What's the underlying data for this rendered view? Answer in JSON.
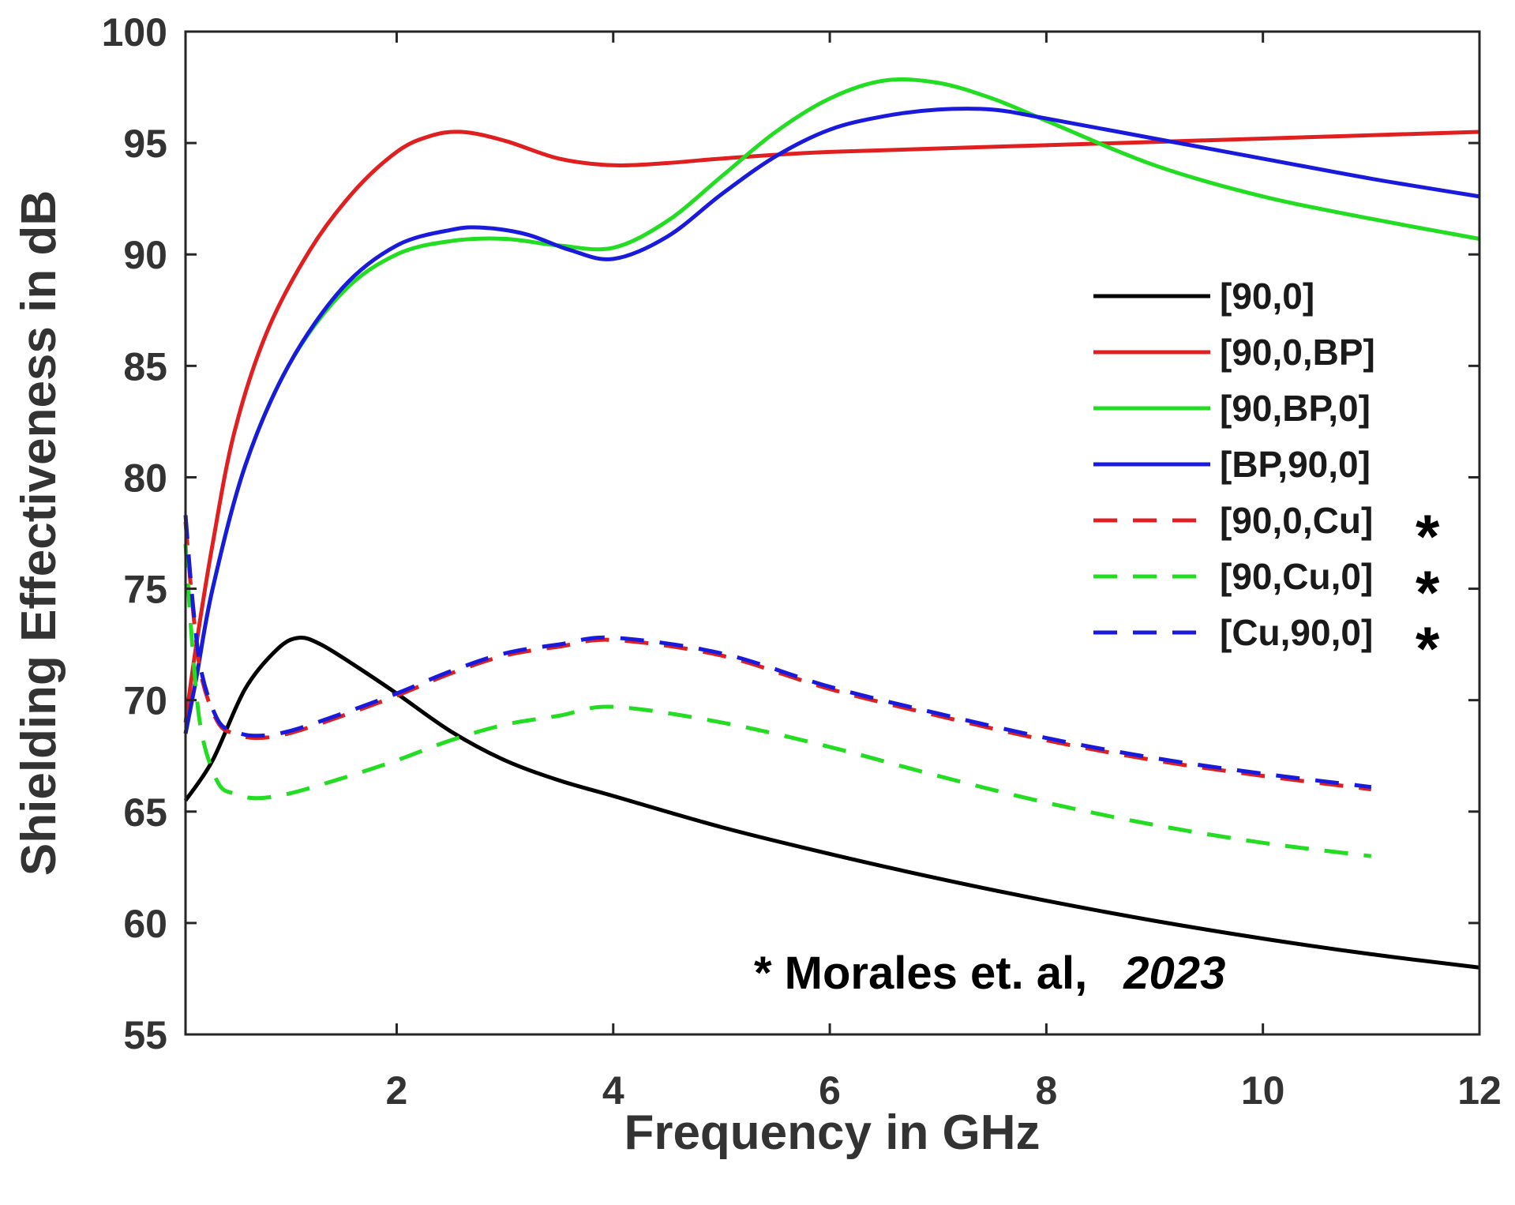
{
  "chart_data": {
    "type": "line",
    "title": "",
    "xlabel": "Frequency in GHz",
    "ylabel": "Shielding Effectiveness in dB",
    "xlim": [
      0.05,
      12
    ],
    "ylim": [
      55,
      100
    ],
    "xticks": [
      2,
      4,
      6,
      8,
      10,
      12
    ],
    "yticks": [
      55,
      60,
      65,
      70,
      75,
      80,
      85,
      90,
      95,
      100
    ],
    "grid": false,
    "legend_position": "right",
    "annotation": {
      "prefix": "* Morales et. al,",
      "year": "2023"
    },
    "series": [
      {
        "name": "[90,0]",
        "color": "#000000",
        "style": "solid",
        "star": "",
        "x": [
          0.05,
          0.3,
          0.6,
          0.9,
          1.1,
          1.3,
          1.6,
          2.0,
          2.5,
          3.0,
          3.5,
          4.0,
          5.0,
          6.0,
          7.0,
          8.0,
          9.0,
          10.0,
          11.0,
          12.0
        ],
        "y": [
          65.5,
          67.3,
          70.5,
          72.3,
          72.8,
          72.5,
          71.6,
          70.3,
          68.6,
          67.3,
          66.4,
          65.7,
          64.3,
          63.1,
          62.0,
          61.0,
          60.1,
          59.3,
          58.6,
          58.0
        ]
      },
      {
        "name": "[90,0,BP]",
        "color": "#e02020",
        "style": "solid",
        "star": "",
        "x": [
          0.05,
          0.15,
          0.3,
          0.5,
          0.8,
          1.2,
          1.6,
          2.0,
          2.3,
          2.6,
          3.0,
          3.5,
          4.0,
          4.5,
          5.0,
          6.0,
          8.0,
          10.0,
          12.0
        ],
        "y": [
          69.0,
          72.5,
          77.0,
          82.0,
          86.5,
          90.2,
          92.8,
          94.6,
          95.3,
          95.5,
          95.1,
          94.3,
          94.0,
          94.1,
          94.3,
          94.6,
          94.9,
          95.2,
          95.5
        ]
      },
      {
        "name": "[90,BP,0]",
        "color": "#22dd22",
        "style": "solid",
        "star": "",
        "x": [
          0.05,
          0.15,
          0.3,
          0.6,
          1.0,
          1.5,
          2.0,
          2.5,
          3.0,
          3.5,
          4.0,
          4.5,
          5.0,
          5.5,
          6.0,
          6.5,
          7.0,
          7.5,
          8.0,
          9.0,
          10.0,
          11.0,
          12.0
        ],
        "y": [
          68.5,
          71.0,
          75.0,
          80.5,
          85.0,
          88.3,
          90.0,
          90.6,
          90.7,
          90.4,
          90.3,
          91.5,
          93.5,
          95.5,
          97.0,
          97.8,
          97.7,
          97.0,
          96.0,
          94.0,
          92.6,
          91.6,
          90.7
        ]
      },
      {
        "name": "[BP,90,0]",
        "color": "#1a1adc",
        "style": "solid",
        "star": "",
        "x": [
          0.05,
          0.15,
          0.3,
          0.6,
          1.0,
          1.5,
          2.0,
          2.5,
          2.8,
          3.2,
          3.6,
          4.0,
          4.5,
          5.0,
          5.5,
          6.0,
          6.5,
          7.0,
          7.5,
          8.0,
          9.0,
          10.0,
          11.0,
          12.0
        ],
        "y": [
          68.5,
          71.0,
          75.0,
          80.5,
          85.0,
          88.5,
          90.4,
          91.1,
          91.2,
          90.9,
          90.2,
          89.8,
          90.8,
          92.7,
          94.4,
          95.6,
          96.2,
          96.5,
          96.5,
          96.1,
          95.2,
          94.3,
          93.4,
          92.6
        ]
      },
      {
        "name": "[90,0,Cu]",
        "color": "#e02020",
        "style": "dashed",
        "star": "*",
        "x": [
          0.05,
          0.12,
          0.2,
          0.35,
          0.5,
          0.7,
          1.0,
          1.5,
          2.0,
          2.5,
          3.0,
          3.5,
          4.0,
          5.0,
          6.0,
          7.0,
          8.0,
          9.0,
          10.0,
          11.0
        ],
        "y": [
          78.0,
          74.0,
          71.0,
          69.0,
          68.5,
          68.3,
          68.5,
          69.3,
          70.2,
          71.2,
          72.0,
          72.4,
          72.7,
          72.0,
          70.5,
          69.3,
          68.2,
          67.3,
          66.6,
          66.0
        ]
      },
      {
        "name": "[90,Cu,0]",
        "color": "#22dd22",
        "style": "dashed",
        "star": "*",
        "x": [
          0.05,
          0.12,
          0.2,
          0.35,
          0.5,
          0.7,
          1.0,
          1.5,
          2.0,
          2.5,
          3.0,
          3.5,
          4.0,
          5.0,
          6.0,
          7.0,
          8.0,
          9.0,
          10.0,
          11.0
        ],
        "y": [
          77.0,
          72.0,
          68.5,
          66.3,
          65.8,
          65.6,
          65.8,
          66.5,
          67.3,
          68.2,
          68.9,
          69.3,
          69.7,
          69.0,
          67.9,
          66.6,
          65.4,
          64.4,
          63.6,
          63.0
        ]
      },
      {
        "name": "[Cu,90,0]",
        "color": "#1a1adc",
        "style": "dashed",
        "star": "*",
        "x": [
          0.05,
          0.12,
          0.2,
          0.35,
          0.5,
          0.7,
          1.0,
          1.5,
          2.0,
          2.5,
          3.0,
          3.5,
          4.0,
          5.0,
          6.0,
          7.0,
          8.0,
          9.0,
          10.0,
          11.0
        ],
        "y": [
          78.3,
          74.2,
          71.2,
          69.1,
          68.6,
          68.4,
          68.6,
          69.4,
          70.3,
          71.3,
          72.1,
          72.5,
          72.8,
          72.1,
          70.6,
          69.4,
          68.3,
          67.4,
          66.7,
          66.1
        ]
      }
    ]
  }
}
